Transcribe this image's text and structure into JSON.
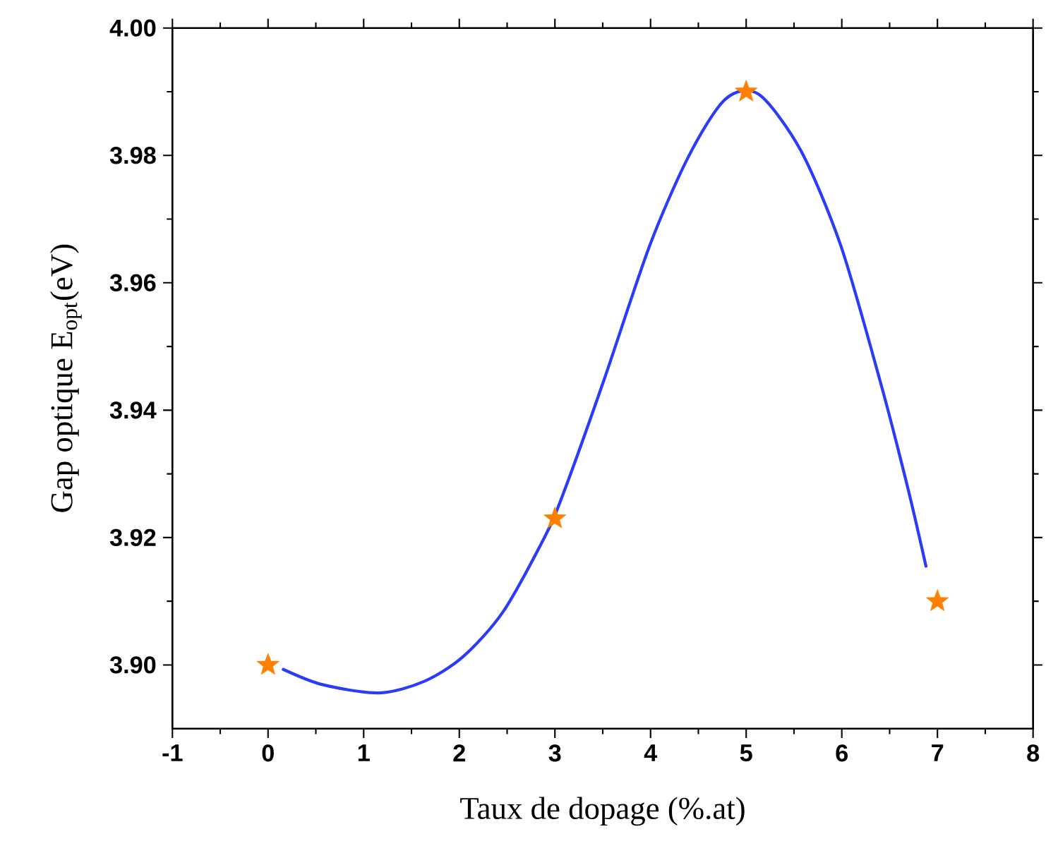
{
  "chart_data": {
    "type": "scatter",
    "xlabel": "Taux de dopage (%.at)",
    "ylabel": "Gap optique E$_{opt}$(eV)",
    "xlim": [
      -1,
      8
    ],
    "ylim": [
      3.89,
      4.0
    ],
    "xticks": [
      -1,
      0,
      1,
      2,
      3,
      4,
      5,
      6,
      7,
      8
    ],
    "yticks": [
      {
        "value": 3.9,
        "label": "3.90"
      },
      {
        "value": 3.92,
        "label": "3.92"
      },
      {
        "value": 3.94,
        "label": "3.94"
      },
      {
        "value": 3.96,
        "label": "3.96"
      },
      {
        "value": 3.98,
        "label": "3.98"
      },
      {
        "value": 4.0,
        "label": "4.00"
      }
    ],
    "grid": false,
    "series": [
      {
        "type": "line",
        "color": "#2a3cf5",
        "line_style": "solid",
        "x": [
          0.16,
          0.57,
          1.16,
          1.63,
          2.04,
          2.46,
          2.9,
          3.1,
          3.51,
          3.99,
          4.4,
          4.78,
          5.13,
          5.57,
          5.99,
          6.4,
          6.69,
          6.88
        ],
        "values": [
          3.8993,
          3.8969,
          3.8956,
          3.8974,
          3.9013,
          3.9084,
          3.9203,
          3.9274,
          3.9446,
          3.9658,
          3.9799,
          3.9888,
          3.9896,
          3.9808,
          3.9658,
          3.9446,
          3.9278,
          3.9155
        ]
      },
      {
        "color": "#ff7f00",
        "marker": "star",
        "x": [
          0,
          3,
          5,
          7
        ],
        "values": [
          3.9,
          3.923,
          3.99,
          3.91
        ]
      }
    ]
  }
}
